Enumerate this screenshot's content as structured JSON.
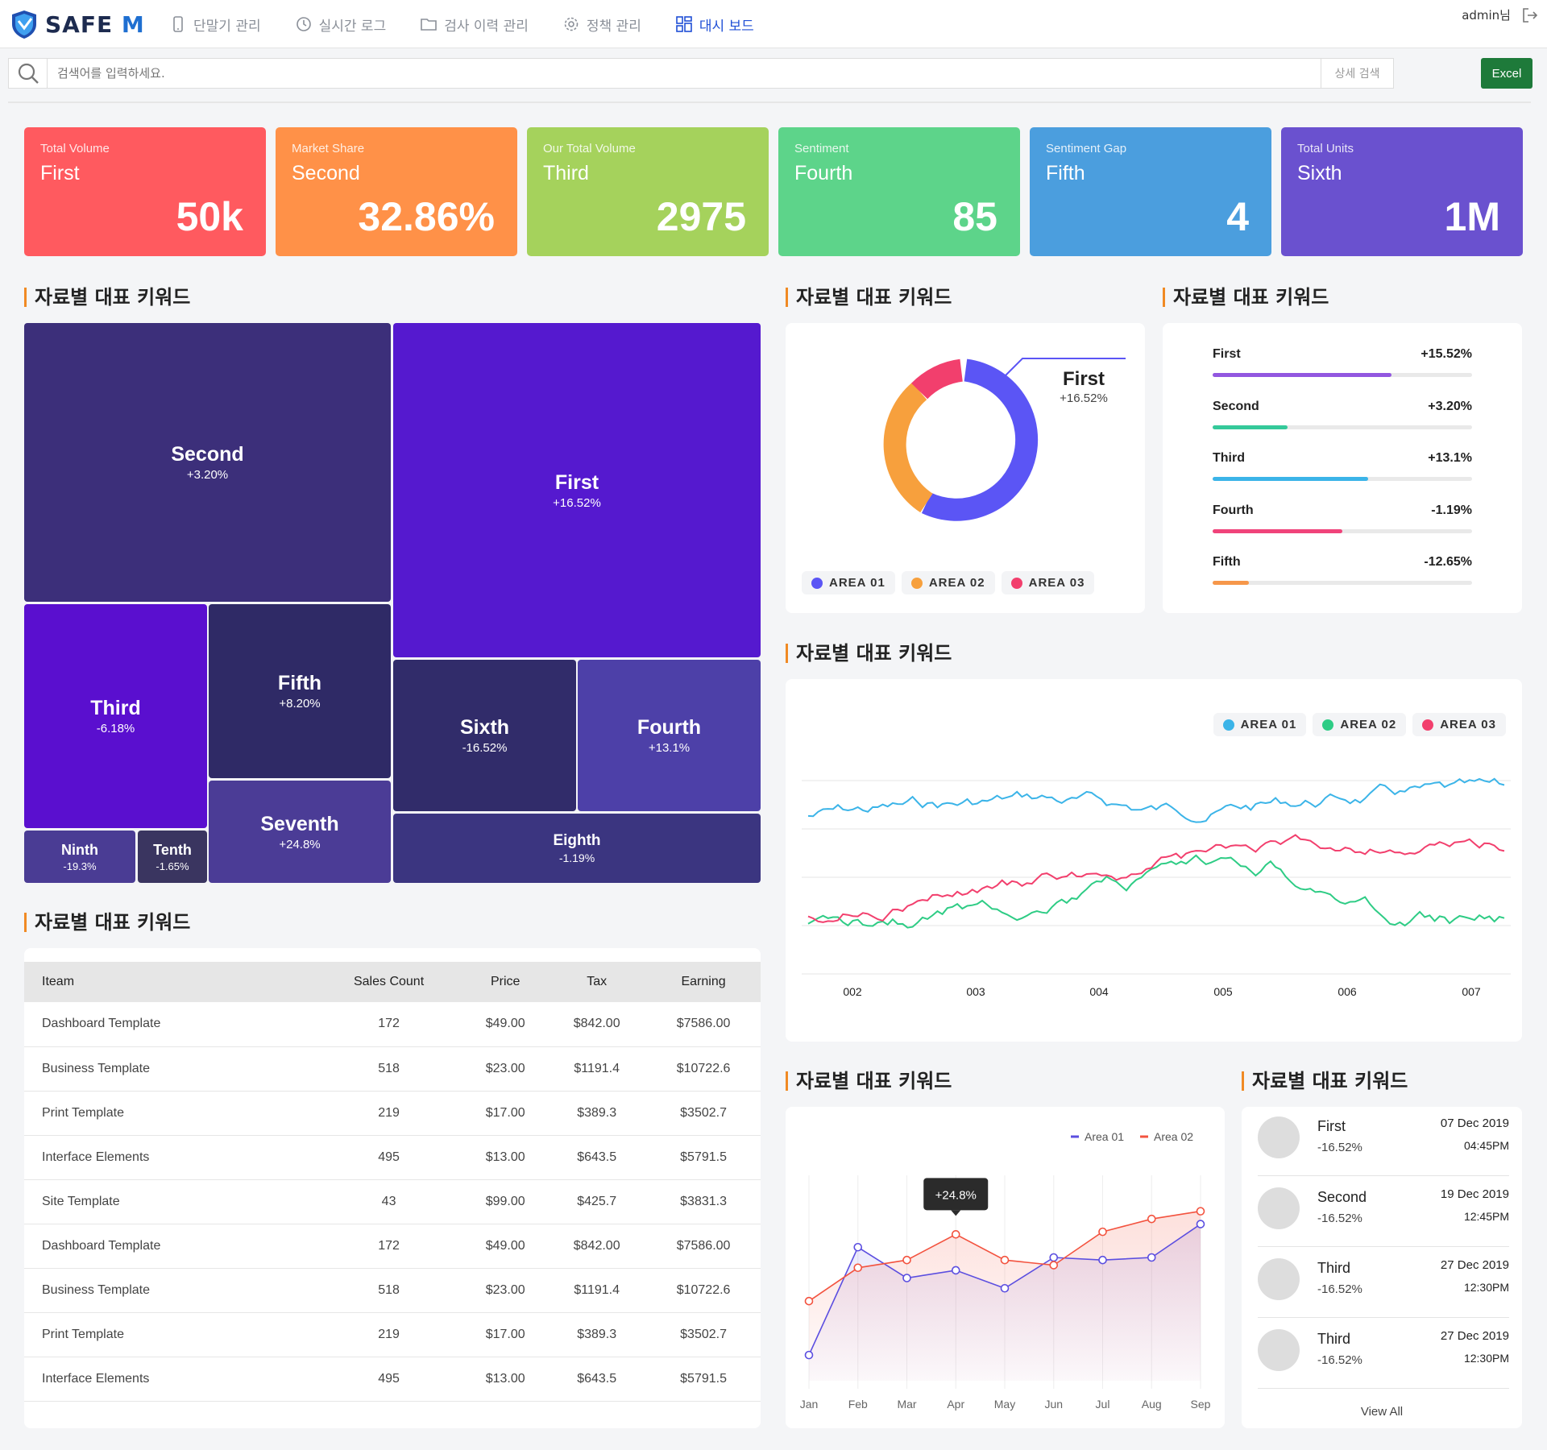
{
  "brand": {
    "logo_text": "SAFE",
    "logo_mark": "M",
    "icon": "shield-icon"
  },
  "nav": [
    {
      "label": "단말기 관리",
      "icon": "mobile-icon"
    },
    {
      "label": "실시간 로그",
      "icon": "clock-icon"
    },
    {
      "label": "검사 이력 관리",
      "icon": "folder-icon"
    },
    {
      "label": "정책 관리",
      "icon": "gear-icon"
    },
    {
      "label": "대시 보드",
      "icon": "dashboard-icon",
      "active": true
    }
  ],
  "user": {
    "name": "admin님",
    "logout_icon": "logout-icon"
  },
  "search": {
    "placeholder": "검색어를 입력하세요.",
    "detail_label": "상세 검색",
    "excel_label": "Excel"
  },
  "kpis": [
    {
      "label": "Total Volume",
      "name": "First",
      "value": "50k",
      "color": "#ff5a5f"
    },
    {
      "label": "Market Share",
      "name": "Second",
      "value": "32.86%",
      "color": "#ff9148"
    },
    {
      "label": "Our Total Volume",
      "name": "Third",
      "value": "2975",
      "color": "#a5d25c"
    },
    {
      "label": "Sentiment",
      "name": "Fourth",
      "value": "85",
      "color": "#5dd48a"
    },
    {
      "label": "Sentiment Gap",
      "name": "Fifth",
      "value": "4",
      "color": "#4b9ede"
    },
    {
      "label": "Total Units",
      "name": "Sixth",
      "value": "1M",
      "color": "#6a51cf"
    }
  ],
  "section_titles": {
    "treemap": "자료별 대표 키워드",
    "donut": "자료별 대표 키워드",
    "bars": "자료별 대표 키워드",
    "multiline": "자료별 대표 키워드",
    "table": "자료별 대표 키워드",
    "area": "자료별 대표 키워드",
    "activity": "자료별 대표 키워드"
  },
  "treemap": [
    {
      "name": "Second",
      "pct": "+3.20%",
      "color": "#3c2f7a"
    },
    {
      "name": "First",
      "pct": "+16.52%",
      "color": "#5519cf"
    },
    {
      "name": "Third",
      "pct": "-6.18%",
      "color": "#5a0fcf"
    },
    {
      "name": "Fifth",
      "pct": "+8.20%",
      "color": "#2f2a66"
    },
    {
      "name": "Seventh",
      "pct": "+24.8%",
      "color": "#4b3c96"
    },
    {
      "name": "Ninth",
      "pct": "-19.3%",
      "color": "#4a3c94"
    },
    {
      "name": "Tenth",
      "pct": "-1.65%",
      "color": "#3a3560"
    },
    {
      "name": "Sixth",
      "pct": "-16.52%",
      "color": "#312c6a"
    },
    {
      "name": "Fourth",
      "pct": "+13.1%",
      "color": "#4d40a8"
    },
    {
      "name": "Eighth",
      "pct": "-1.19%",
      "color": "#3b3580"
    }
  ],
  "donut": {
    "callout_name": "First",
    "callout_pct": "+16.52%",
    "legend": [
      {
        "label": "AREA 01",
        "color": "#5b55f5"
      },
      {
        "label": "AREA 02",
        "color": "#f7a03d"
      },
      {
        "label": "AREA 03",
        "color": "#f23f6d"
      }
    ]
  },
  "bars": [
    {
      "name": "First",
      "pct": "+15.52%",
      "fill": 0.69,
      "color": "#9257e0"
    },
    {
      "name": "Second",
      "pct": "+3.20%",
      "fill": 0.29,
      "color": "#35c99a"
    },
    {
      "name": "Third",
      "pct": "+13.1%",
      "fill": 0.6,
      "color": "#3bb4e8"
    },
    {
      "name": "Fourth",
      "pct": "-1.19%",
      "fill": 0.5,
      "color": "#f0437a"
    },
    {
      "name": "Fifth",
      "pct": "-12.65%",
      "fill": 0.14,
      "color": "#f6974a"
    }
  ],
  "multiline": {
    "legend": [
      {
        "label": "AREA 01",
        "color": "#3bb4e8"
      },
      {
        "label": "AREA 02",
        "color": "#2ecc85"
      },
      {
        "label": "AREA 03",
        "color": "#f23f6d"
      }
    ],
    "x_labels": [
      "002",
      "003",
      "004",
      "005",
      "006",
      "007"
    ]
  },
  "table": {
    "headers": [
      "Iteam",
      "Sales Count",
      "Price",
      "Tax",
      "Earning"
    ],
    "rows": [
      [
        "Dashboard Template",
        "172",
        "$49.00",
        "$842.00",
        "$7586.00"
      ],
      [
        "Business Template",
        "518",
        "$23.00",
        "$1191.4",
        "$10722.6"
      ],
      [
        "Print Template",
        "219",
        "$17.00",
        "$389.3",
        "$3502.7"
      ],
      [
        "Interface Elements",
        "495",
        "$13.00",
        "$643.5",
        "$5791.5"
      ],
      [
        "Site Template",
        "43",
        "$99.00",
        "$425.7",
        "$3831.3"
      ],
      [
        "Dashboard Template",
        "172",
        "$49.00",
        "$842.00",
        "$7586.00"
      ],
      [
        "Business Template",
        "518",
        "$23.00",
        "$1191.4",
        "$10722.6"
      ],
      [
        "Print Template",
        "219",
        "$17.00",
        "$389.3",
        "$3502.7"
      ],
      [
        "Interface Elements",
        "495",
        "$13.00",
        "$643.5",
        "$5791.5"
      ]
    ]
  },
  "chart_data": {
    "type": "line",
    "categories": [
      "Jan",
      "Feb",
      "Mar",
      "Apr",
      "May",
      "Jun",
      "Jul",
      "Aug",
      "Sep"
    ],
    "series": [
      {
        "name": "Area 01",
        "color": "#5b4ee0",
        "values": [
          10,
          52,
          40,
          43,
          36,
          48,
          47,
          48,
          61
        ]
      },
      {
        "name": "Area 02",
        "color": "#f3533f",
        "values": [
          31,
          44,
          47,
          57,
          47,
          45,
          58,
          63,
          66
        ]
      }
    ],
    "tooltip": "+24.8%",
    "ylim": [
      0,
      80
    ]
  },
  "activity": {
    "items": [
      {
        "name": "First",
        "pct": "-16.52%",
        "date": "07 Dec 2019",
        "time": "04:45PM"
      },
      {
        "name": "Second",
        "pct": "-16.52%",
        "date": "19 Dec 2019",
        "time": "12:45PM"
      },
      {
        "name": "Third",
        "pct": "-16.52%",
        "date": "27 Dec 2019",
        "time": "12:30PM"
      },
      {
        "name": "Third",
        "pct": "-16.52%",
        "date": "27 Dec 2019",
        "time": "12:30PM"
      }
    ],
    "view_all": "View All"
  }
}
